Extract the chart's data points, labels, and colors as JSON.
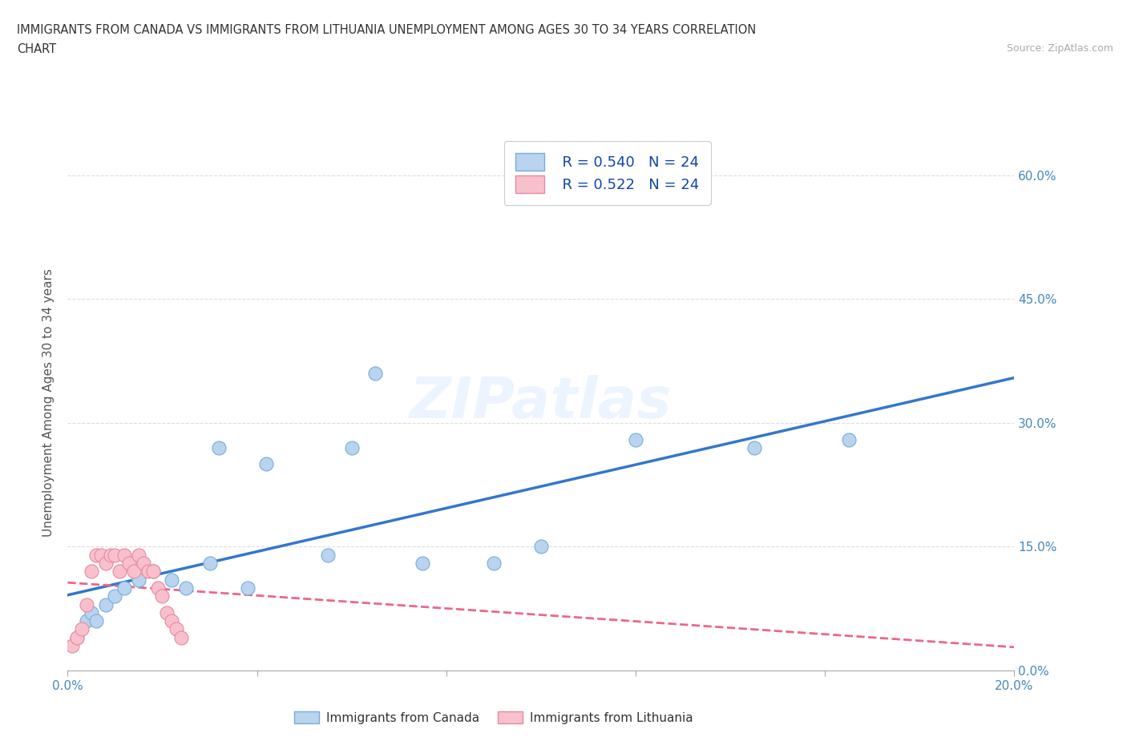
{
  "title_line1": "IMMIGRANTS FROM CANADA VS IMMIGRANTS FROM LITHUANIA UNEMPLOYMENT AMONG AGES 30 TO 34 YEARS CORRELATION",
  "title_line2": "CHART",
  "source": "Source: ZipAtlas.com",
  "ylabel": "Unemployment Among Ages 30 to 34 years",
  "xlim": [
    0.0,
    0.2
  ],
  "ylim": [
    0.0,
    0.65
  ],
  "xticks": [
    0.0,
    0.04,
    0.08,
    0.12,
    0.16,
    0.2
  ],
  "yticks": [
    0.0,
    0.15,
    0.3,
    0.45,
    0.6
  ],
  "ytick_labels": [
    "0.0%",
    "15.0%",
    "30.0%",
    "45.0%",
    "60.0%"
  ],
  "xtick_labels": [
    "0.0%",
    "",
    "",
    "",
    "",
    "20.0%"
  ],
  "canada_color": "#b8d4ee",
  "canada_edge": "#7aabdd",
  "lithuania_color": "#f8c0cc",
  "lithuania_edge": "#e888a0",
  "trend_canada_color": "#3377cc",
  "trend_lithuania_color": "#ee6688",
  "R_canada": 0.54,
  "R_lithuania": 0.522,
  "N_canada": 24,
  "N_lithuania": 24,
  "canada_x": [
    0.002,
    0.004,
    0.005,
    0.006,
    0.008,
    0.01,
    0.012,
    0.015,
    0.018,
    0.022,
    0.025,
    0.03,
    0.032,
    0.038,
    0.042,
    0.055,
    0.06,
    0.065,
    0.075,
    0.09,
    0.1,
    0.12,
    0.145,
    0.165
  ],
  "canada_y": [
    0.04,
    0.06,
    0.07,
    0.06,
    0.08,
    0.09,
    0.1,
    0.11,
    0.12,
    0.11,
    0.1,
    0.13,
    0.27,
    0.1,
    0.25,
    0.14,
    0.27,
    0.36,
    0.13,
    0.13,
    0.15,
    0.28,
    0.27,
    0.28
  ],
  "lithuania_x": [
    0.001,
    0.002,
    0.003,
    0.004,
    0.005,
    0.006,
    0.007,
    0.008,
    0.009,
    0.01,
    0.011,
    0.012,
    0.013,
    0.014,
    0.015,
    0.016,
    0.017,
    0.018,
    0.019,
    0.02,
    0.021,
    0.022,
    0.023,
    0.024
  ],
  "lithuania_y": [
    0.03,
    0.04,
    0.05,
    0.08,
    0.12,
    0.14,
    0.14,
    0.13,
    0.14,
    0.14,
    0.12,
    0.14,
    0.13,
    0.12,
    0.14,
    0.13,
    0.12,
    0.12,
    0.1,
    0.09,
    0.07,
    0.06,
    0.05,
    0.04
  ],
  "watermark_text": "ZIPatlas",
  "bg_color": "#ffffff",
  "grid_color": "#dddddd",
  "axis_label_color": "#4488bb",
  "title_color": "#333333",
  "legend_text_color": "#1144aa"
}
